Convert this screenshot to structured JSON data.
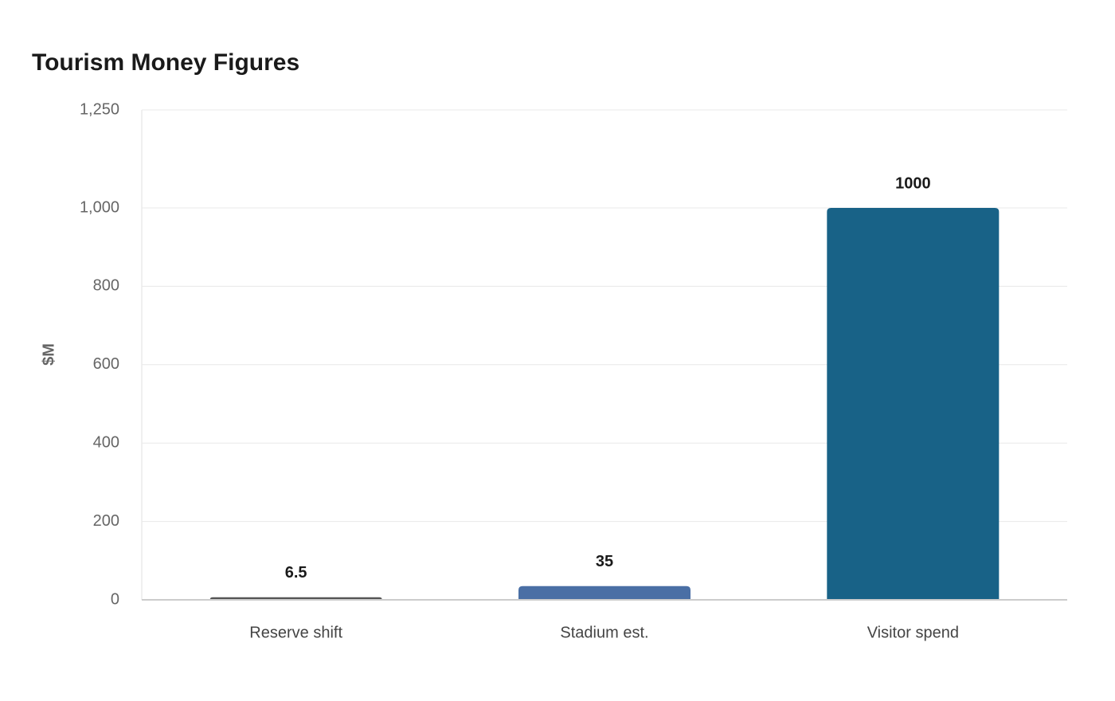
{
  "chart_data": {
    "type": "bar",
    "title": "Tourism Money Figures",
    "y_label": "$M",
    "categories": [
      "Reserve shift",
      "Stadium est.",
      "Visitor spend"
    ],
    "values": [
      6.5,
      35,
      1000
    ],
    "colors": [
      "#555555",
      "#4a6fa5",
      "#186287"
    ],
    "ylim": [
      0,
      1250
    ],
    "yticks": [
      0,
      200,
      400,
      600,
      800,
      {
        "value": 1000,
        "label": "1,000"
      },
      {
        "value": 1250,
        "label": "1,250"
      }
    ],
    "grid": true
  }
}
